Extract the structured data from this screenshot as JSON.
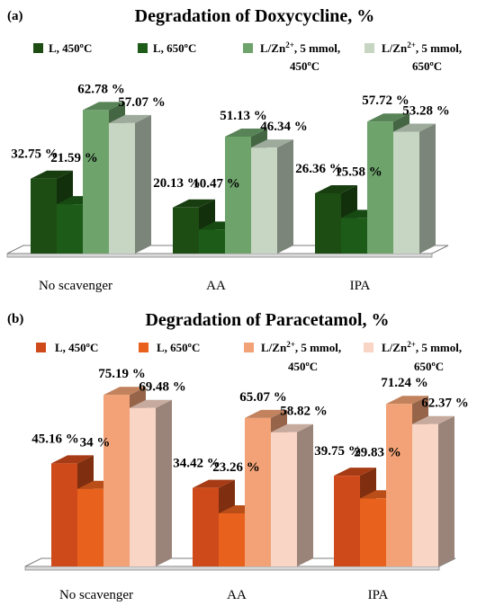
{
  "chart_data": [
    {
      "type": "bar",
      "panel_label": "(a)",
      "title": "Degradation of Doxycycline, %",
      "categories": [
        "No scavenger",
        "AA",
        "IPA"
      ],
      "series": [
        {
          "name": "L, 450ºC",
          "values": [
            32.75,
            20.13,
            26.36
          ],
          "color": "#1e4d14"
        },
        {
          "name": "L, 650ºC",
          "values": [
            21.59,
            10.47,
            15.58
          ],
          "color": "#1d5c18"
        },
        {
          "name": "L/Zn2+, 5 mmol, 450ºC",
          "values": [
            62.78,
            51.13,
            57.72
          ],
          "color": "#6ea46c"
        },
        {
          "name": "L/Zn2+, 5 mmol, 650ºC",
          "values": [
            57.07,
            46.34,
            53.28
          ],
          "color": "#c6d6c3"
        }
      ],
      "data_labels": [
        [
          "32.75 %",
          "20.13 %",
          "26.36 %"
        ],
        [
          "21.59 %",
          "10.47 %",
          "15.58 %"
        ],
        [
          "62.78 %",
          "51.13 %",
          "57.72 %"
        ],
        [
          "57.07 %",
          "46.34 %",
          "53.28 %"
        ]
      ],
      "ylim": [
        0,
        70
      ],
      "grid": false,
      "legend": "top"
    },
    {
      "type": "bar",
      "panel_label": "(b)",
      "title": "Degradation of Paracetamol, %",
      "categories": [
        "No scavenger",
        "AA",
        "IPA"
      ],
      "series": [
        {
          "name": "L, 450ºC",
          "values": [
            45.16,
            34.42,
            39.75
          ],
          "color": "#cf4a1a"
        },
        {
          "name": "L, 650ºC",
          "values": [
            34,
            23.26,
            29.83
          ],
          "color": "#e8621e"
        },
        {
          "name": "L/Zn2+, 5 mmol, 450ºC",
          "values": [
            75.19,
            65.07,
            71.24
          ],
          "color": "#f2a276"
        },
        {
          "name": "L/Zn2+, 5 mmol, 650ºC",
          "values": [
            69.48,
            58.82,
            62.37
          ],
          "color": "#f8d5c5"
        }
      ],
      "data_labels": [
        [
          "45.16 %",
          "34.42 %",
          "39.75 %"
        ],
        [
          "34 %",
          "23.26 %",
          "29.83 %"
        ],
        [
          "75.19 %",
          "65.07 %",
          "71.24 %"
        ],
        [
          "69.48 %",
          "58.82 %",
          "62.37 %"
        ]
      ],
      "ylim": [
        0,
        80
      ],
      "grid": false,
      "legend": "top"
    }
  ],
  "legend_text": {
    "l450": "L, 450ºC",
    "l650": "L, 650ºC",
    "zn_prefix": "L/Zn",
    "zn_sup": "2+",
    "zn_mid": ", 5 mmol,",
    "t450": "450ºC",
    "t650": "650ºC"
  }
}
